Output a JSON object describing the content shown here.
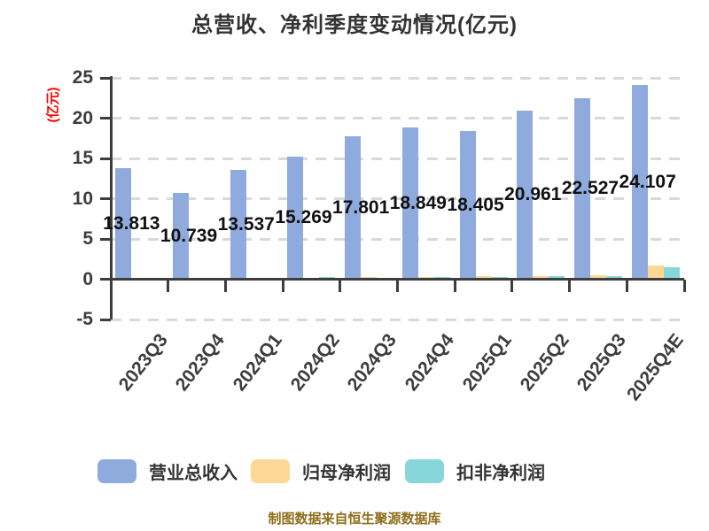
{
  "title": "总营收、净利季度变动情况(亿元)",
  "y_axis": {
    "unit_label": "(亿元)",
    "tick_labels": [
      "25",
      "20",
      "15",
      "10",
      "5",
      "0",
      "-5"
    ]
  },
  "source_note": "制图数据来自恒生聚源数据库",
  "chart_data": {
    "type": "bar",
    "title": "总营收、净利季度变动情况(亿元)",
    "categories": [
      "2023Q3",
      "2023Q4",
      "2024Q1",
      "2024Q2",
      "2024Q3",
      "2024Q4",
      "2025Q1",
      "2025Q2",
      "2025Q3",
      "2025Q4E"
    ],
    "series": [
      {
        "name": "营业总收入",
        "color": "#8FAADC",
        "values": [
          13.813,
          10.739,
          13.537,
          15.269,
          17.801,
          18.849,
          18.405,
          20.961,
          22.527,
          24.107
        ],
        "value_labels": [
          "13.813",
          "10.739",
          "13.537",
          "15.269",
          "17.801",
          "18.849",
          "18.405",
          "20.961",
          "22.527",
          "24.107"
        ]
      },
      {
        "name": "归母净利润",
        "color": "#FCD795",
        "values": [
          0.08,
          -0.15,
          0.12,
          0.18,
          0.22,
          0.28,
          0.35,
          0.42,
          0.48,
          1.65
        ]
      },
      {
        "name": "扣非净利润",
        "color": "#86D6DA",
        "values": [
          0.05,
          -0.18,
          0.15,
          0.22,
          0.18,
          0.32,
          0.3,
          0.38,
          0.42,
          1.5
        ]
      }
    ],
    "ylabel": "(亿元)",
    "ylim": [
      -5,
      25
    ],
    "yticks": [
      25,
      20,
      15,
      10,
      5,
      0,
      -5
    ],
    "grid": "horizontal-dashed",
    "legend_position": "bottom"
  }
}
